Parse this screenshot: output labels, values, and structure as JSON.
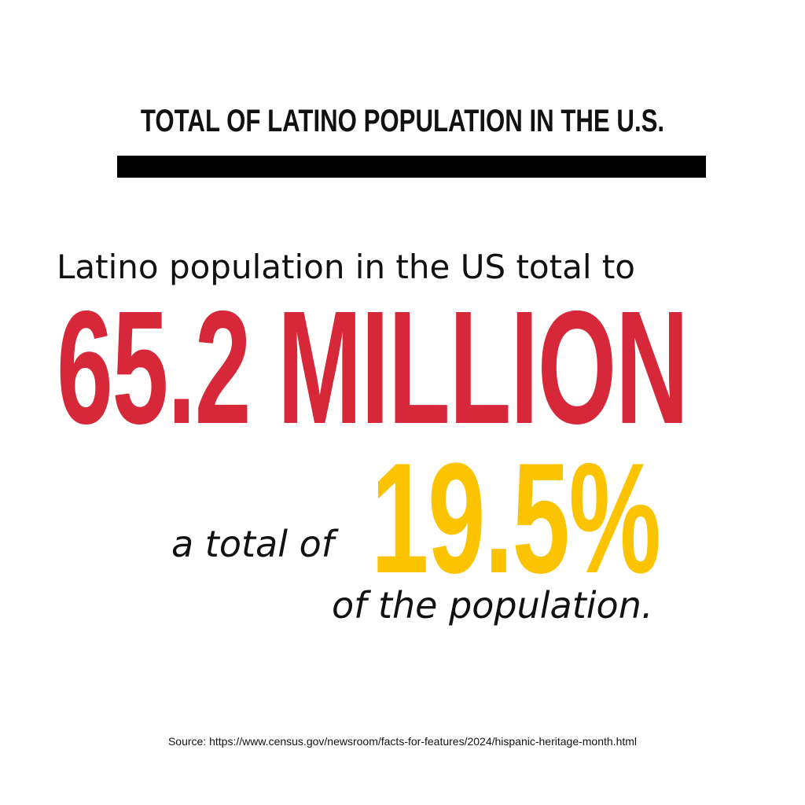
{
  "title": "TOTAL OF LATINO POPULATION IN THE U.S.",
  "intro_text": "Latino population in the US total to",
  "big_number": "65.2 MILLION",
  "share_prefix": "a total of",
  "share_value": "19.5%",
  "share_suffix": "of the population.",
  "source": "Source: https://www.census.gov/newsroom/facts-for-features/2024/hispanic-heritage-month.html",
  "colors": {
    "background": "#ffffff",
    "text": "#111111",
    "accent_red": "#d62839",
    "accent_yellow": "#fcc300",
    "rule": "#000000"
  }
}
